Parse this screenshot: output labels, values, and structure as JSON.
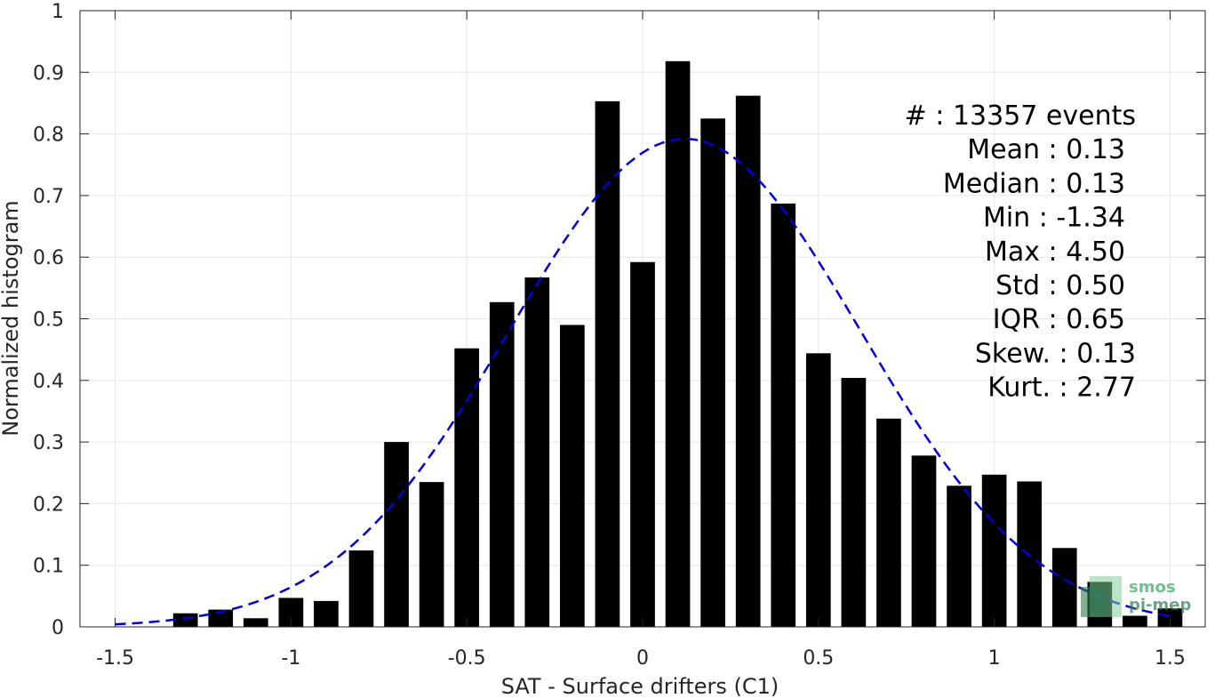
{
  "chart_data": {
    "type": "bar",
    "xlabel": "SAT - Surface drifters (C1)",
    "ylabel": "Normalized histogram",
    "xlim": [
      -1.6,
      1.6
    ],
    "ylim": [
      0,
      1
    ],
    "xticks": [
      -1.5,
      -1,
      -0.5,
      0,
      0.5,
      1,
      1.5
    ],
    "xtick_labels": [
      "-1.5",
      "-1",
      "-0.5",
      "0",
      "0.5",
      "1",
      "1.5"
    ],
    "yticks": [
      0,
      0.1,
      0.2,
      0.3,
      0.4,
      0.5,
      0.6,
      0.7,
      0.8,
      0.9,
      1
    ],
    "ytick_labels": [
      "0",
      "0.1",
      "0.2",
      "0.3",
      "0.4",
      "0.5",
      "0.6",
      "0.7",
      "0.8",
      "0.9",
      "1"
    ],
    "grid": true,
    "bar_color": "#000000",
    "bar_width": 0.07,
    "bins": [
      -1.3,
      -1.2,
      -1.1,
      -1.0,
      -0.9,
      -0.8,
      -0.7,
      -0.6,
      -0.5,
      -0.4,
      -0.3,
      -0.2,
      -0.1,
      0.0,
      0.1,
      0.2,
      0.3,
      0.4,
      0.5,
      0.6,
      0.7,
      0.8,
      0.9,
      1.0,
      1.1,
      1.2,
      1.3,
      1.4,
      1.5
    ],
    "values": [
      0.022,
      0.028,
      0.014,
      0.047,
      0.042,
      0.124,
      0.3,
      0.235,
      0.452,
      0.527,
      0.567,
      0.49,
      0.853,
      0.592,
      0.918,
      0.825,
      0.862,
      0.687,
      0.444,
      0.404,
      0.338,
      0.278,
      0.229,
      0.247,
      0.236,
      0.128,
      0.073,
      0.018,
      0.03
    ],
    "fit": {
      "type": "gaussian",
      "mean": 0.12,
      "peak": 0.792,
      "sigma": 0.5,
      "x_range": [
        -1.5,
        1.5
      ],
      "color": "#0000dd",
      "style": "dashed"
    },
    "stats": [
      {
        "label": "#  : 13357 events",
        "align": "end-wide"
      },
      {
        "label": "Mean : 0.13",
        "align": "end"
      },
      {
        "label": "Median : 0.13",
        "align": "end"
      },
      {
        "label": "Min : -1.34",
        "align": "end"
      },
      {
        "label": "Max : 4.50",
        "align": "end"
      },
      {
        "label": "Std : 0.50",
        "align": "end"
      },
      {
        "label": "IQR : 0.65",
        "align": "end"
      },
      {
        "label": "Skew. : 0.13",
        "align": "end-wide"
      },
      {
        "label": "Kurt. : 2.77",
        "align": "end-wide"
      }
    ]
  },
  "logo": {
    "line1": "smos",
    "line2": "pi-mep",
    "color": "#3fae6b"
  }
}
